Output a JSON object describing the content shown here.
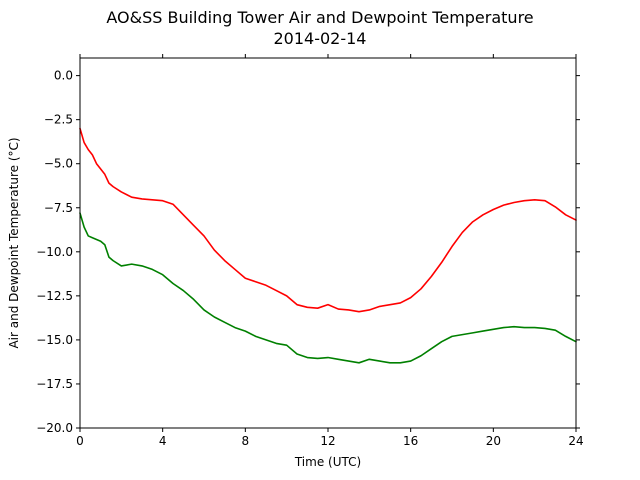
{
  "chart_data": {
    "type": "line",
    "title": "AO&SS Building Tower Air and Dewpoint Temperature",
    "subtitle": "2014-02-14",
    "xlabel": "Time (UTC)",
    "ylabel": "Air and Dewpoint Temperature (°C)",
    "xlim": [
      0,
      24
    ],
    "ylim": [
      -20,
      1
    ],
    "xticks": [
      0,
      4,
      8,
      12,
      16,
      20,
      24
    ],
    "xtick_labels": [
      "0",
      "4",
      "8",
      "12",
      "16",
      "20",
      "24"
    ],
    "yticks": [
      0,
      -2.5,
      -5,
      -7.5,
      -10,
      -12.5,
      -15,
      -17.5,
      -20
    ],
    "ytick_labels": [
      "0.0",
      "−2.5",
      "−5.0",
      "−7.5",
      "−10.0",
      "−12.5",
      "−15.0",
      "−17.5",
      "−20.0"
    ],
    "grid": false,
    "legend": "none",
    "series": [
      {
        "color": "#ff0000",
        "x": [
          0,
          0.2,
          0.4,
          0.6,
          0.8,
          1.0,
          1.2,
          1.4,
          1.6,
          2.0,
          2.5,
          3.0,
          3.5,
          4.0,
          4.5,
          5.0,
          5.5,
          6.0,
          6.5,
          7.0,
          7.5,
          8.0,
          8.5,
          9.0,
          9.5,
          10.0,
          10.5,
          11.0,
          11.5,
          12.0,
          12.5,
          13.0,
          13.5,
          14.0,
          14.5,
          15.0,
          15.5,
          16.0,
          16.5,
          17.0,
          17.5,
          18.0,
          18.5,
          19.0,
          19.5,
          20.0,
          20.5,
          21.0,
          21.5,
          22.0,
          22.5,
          23.0,
          23.5,
          24.0
        ],
        "y": [
          -3.0,
          -3.8,
          -4.2,
          -4.5,
          -5.0,
          -5.3,
          -5.6,
          -6.1,
          -6.3,
          -6.6,
          -6.9,
          -7.0,
          -7.05,
          -7.1,
          -7.3,
          -7.9,
          -8.5,
          -9.1,
          -9.9,
          -10.5,
          -11.0,
          -11.5,
          -11.7,
          -11.9,
          -12.2,
          -12.5,
          -13.0,
          -13.15,
          -13.2,
          -13.0,
          -13.25,
          -13.3,
          -13.4,
          -13.3,
          -13.1,
          -13.0,
          -12.9,
          -12.6,
          -12.1,
          -11.4,
          -10.6,
          -9.7,
          -8.9,
          -8.3,
          -7.9,
          -7.6,
          -7.35,
          -7.2,
          -7.1,
          -7.05,
          -7.1,
          -7.45,
          -7.9,
          -8.2
        ]
      },
      {
        "color": "#008000",
        "x": [
          0,
          0.2,
          0.4,
          0.6,
          0.8,
          1.0,
          1.2,
          1.4,
          1.6,
          2.0,
          2.5,
          3.0,
          3.5,
          4.0,
          4.5,
          5.0,
          5.5,
          6.0,
          6.5,
          7.0,
          7.5,
          8.0,
          8.5,
          9.0,
          9.5,
          10.0,
          10.5,
          11.0,
          11.5,
          12.0,
          12.5,
          13.0,
          13.5,
          14.0,
          14.5,
          15.0,
          15.5,
          16.0,
          16.5,
          17.0,
          17.5,
          18.0,
          18.5,
          19.0,
          19.5,
          20.0,
          20.5,
          21.0,
          21.5,
          22.0,
          22.5,
          23.0,
          23.5,
          24.0
        ],
        "y": [
          -7.8,
          -8.6,
          -9.1,
          -9.2,
          -9.3,
          -9.4,
          -9.6,
          -10.3,
          -10.5,
          -10.8,
          -10.7,
          -10.8,
          -11.0,
          -11.3,
          -11.8,
          -12.2,
          -12.7,
          -13.3,
          -13.7,
          -14.0,
          -14.3,
          -14.5,
          -14.8,
          -15.0,
          -15.2,
          -15.3,
          -15.8,
          -16.0,
          -16.05,
          -16.0,
          -16.1,
          -16.2,
          -16.3,
          -16.1,
          -16.2,
          -16.3,
          -16.3,
          -16.2,
          -15.9,
          -15.5,
          -15.1,
          -14.8,
          -14.7,
          -14.6,
          -14.5,
          -14.4,
          -14.3,
          -14.25,
          -14.3,
          -14.3,
          -14.35,
          -14.45,
          -14.8,
          -15.1
        ]
      }
    ]
  }
}
